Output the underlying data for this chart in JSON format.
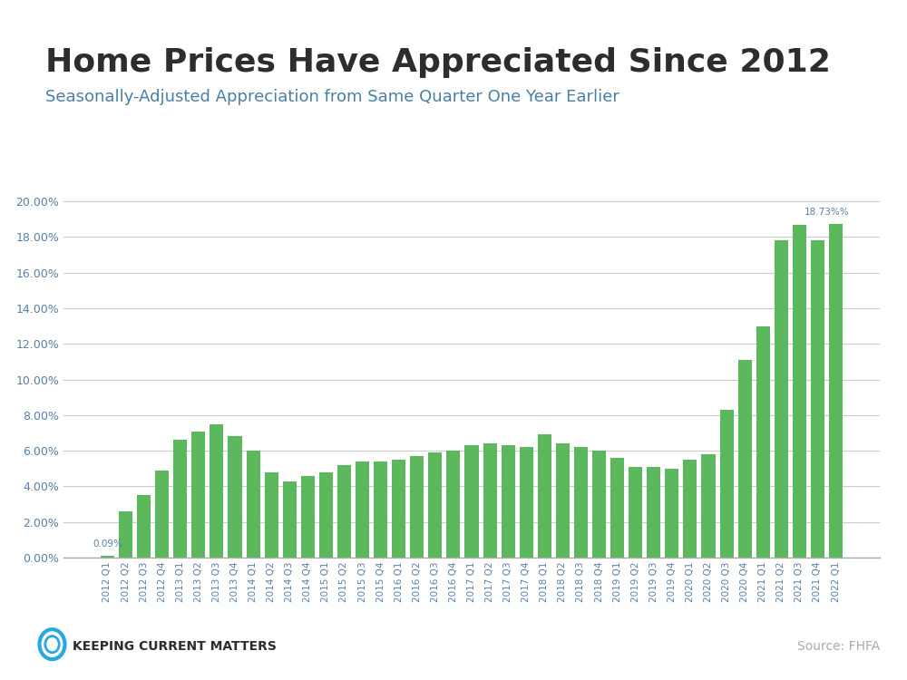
{
  "title": "Home Prices Have Appreciated Since 2012",
  "subtitle": "Seasonally-Adjusted Appreciation from Same Quarter One Year Earlier",
  "title_color": "#2d2d2d",
  "subtitle_color": "#4a7fa5",
  "bar_color": "#5cb85c",
  "background_color": "#ffffff",
  "top_bar_color": "#29a8e0",
  "source_text": "Source: FHFA",
  "logo_text": "Keeping Current Matters",
  "annotation_label": "18.73%",
  "annotation_bar_index": 40,
  "first_bar_label": "0.09%",
  "categories": [
    "2012 Q1",
    "2012 Q2",
    "2012 Q3",
    "2012 Q4",
    "2013 Q1",
    "2013 Q2",
    "2013 Q3",
    "2013 Q4",
    "2014 Q1",
    "2014 Q2",
    "2014 Q3",
    "2014 Q4",
    "2015 Q1",
    "2015 Q2",
    "2015 Q3",
    "2015 Q4",
    "2016 Q1",
    "2016 Q2",
    "2016 Q3",
    "2016 Q4",
    "2017 Q1",
    "2017 Q2",
    "2017 Q3",
    "2017 Q4",
    "2018 Q1",
    "2018 Q2",
    "2018 Q3",
    "2018 Q4",
    "2019 Q1",
    "2019 Q2",
    "2019 Q3",
    "2019 Q4",
    "2020 Q1",
    "2020 Q2",
    "2020 Q3",
    "2020 Q4",
    "2021 Q1",
    "2021 Q2",
    "2021 Q3",
    "2021 Q4",
    "2022 Q1"
  ],
  "values": [
    0.0009,
    0.026,
    0.035,
    0.049,
    0.066,
    0.071,
    0.075,
    0.068,
    0.06,
    0.048,
    0.043,
    0.046,
    0.048,
    0.052,
    0.054,
    0.054,
    0.055,
    0.057,
    0.059,
    0.06,
    0.063,
    0.064,
    0.063,
    0.062,
    0.069,
    0.064,
    0.062,
    0.06,
    0.056,
    0.051,
    0.051,
    0.05,
    0.055,
    0.058,
    0.083,
    0.111,
    0.13,
    0.178,
    0.187,
    0.178,
    0.1873
  ],
  "ylim": [
    0,
    0.21
  ],
  "yticks": [
    0.0,
    0.02,
    0.04,
    0.06,
    0.08,
    0.1,
    0.12,
    0.14,
    0.16,
    0.18,
    0.2
  ],
  "ylabel_format": "{:.2%}",
  "figsize": [
    10.0,
    7.5
  ],
  "dpi": 100
}
